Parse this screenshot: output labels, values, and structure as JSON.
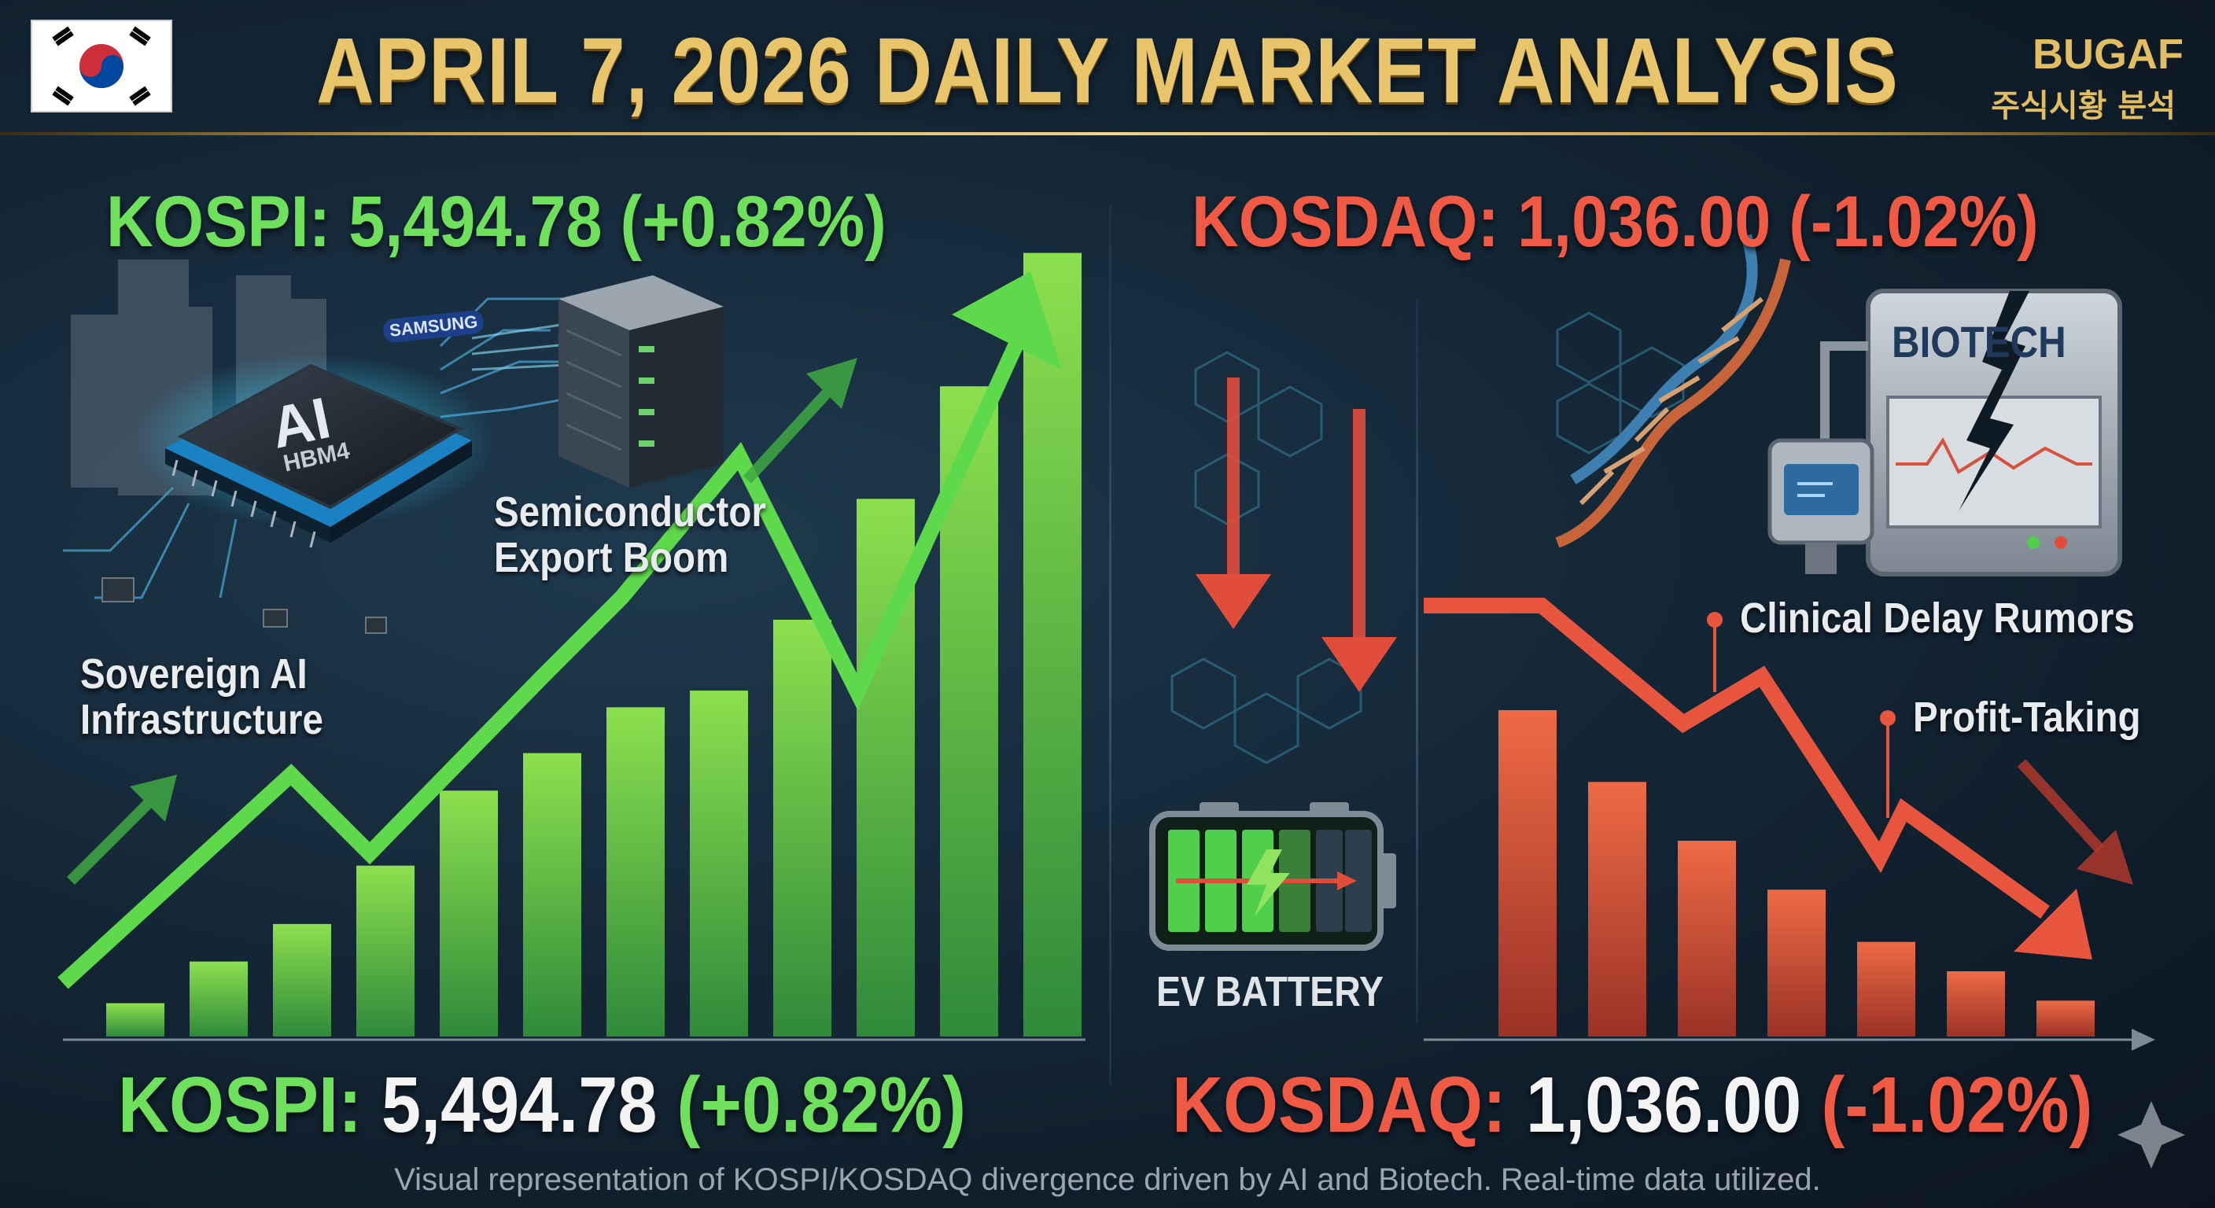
{
  "header": {
    "title": "APRIL 7, 2026 DAILY MARKET ANALYSIS",
    "brand": "BUGAF",
    "brand_subtitle": "주식시황 분석",
    "flag_icon": "south-korea-flag-icon"
  },
  "kospi": {
    "top_label": "KOSPI: 5,494.78 (+0.82%)",
    "bottom_name": "KOSPI:",
    "bottom_value": "5,494.78",
    "bottom_change": "(+0.82%)",
    "color": "#6fe05c",
    "chip_text": "AI",
    "chip_subtext": "HBM4",
    "chip_brand": "SAMSUNG",
    "annotations": {
      "semiconductor_line1": "Semiconductor",
      "semiconductor_line2": "Export Boom",
      "sovereign_line1": "Sovereign AI",
      "sovereign_line2": "Infrastructure"
    },
    "bar_levels": [
      0.08,
      0.18,
      0.27,
      0.41,
      0.59,
      0.68,
      0.79,
      0.83,
      1.0,
      1.29,
      1.56,
      1.88
    ]
  },
  "kosdaq": {
    "top_label": "KOSDAQ: 1,036.00 (-1.02%)",
    "bottom_name": "KOSDAQ:",
    "bottom_value": "1,036.00",
    "bottom_change": "(-1.02%)",
    "color": "#f05a45",
    "ev_label": "EV BATTERY",
    "biotech_label": "BIOTECH",
    "annotations": {
      "clinical": "Clinical Delay Rumors",
      "profit": "Profit-Taking"
    },
    "bar_levels": [
      1.0,
      0.78,
      0.6,
      0.45,
      0.29,
      0.2,
      0.11
    ]
  },
  "footnote": "Visual representation of KOSPI/KOSDAQ divergence driven by AI and Biotech. Real-time data utilized."
}
